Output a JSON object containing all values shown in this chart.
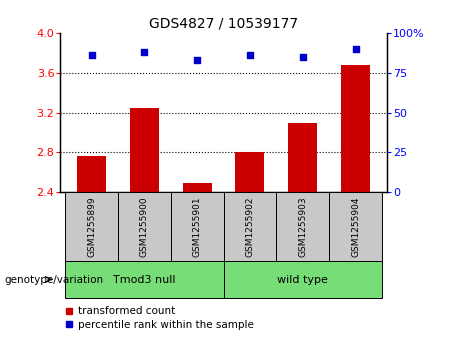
{
  "title": "GDS4827 / 10539177",
  "samples": [
    "GSM1255899",
    "GSM1255900",
    "GSM1255901",
    "GSM1255902",
    "GSM1255903",
    "GSM1255904"
  ],
  "bar_values": [
    2.76,
    3.25,
    2.49,
    2.8,
    3.1,
    3.68
  ],
  "percentile_values": [
    86,
    88,
    83,
    86,
    85,
    90
  ],
  "ylim_left": [
    2.4,
    4.0
  ],
  "ylim_right": [
    0,
    100
  ],
  "yticks_left": [
    2.4,
    2.8,
    3.2,
    3.6,
    4.0
  ],
  "yticks_right": [
    0,
    25,
    50,
    75,
    100
  ],
  "bar_color": "#cc0000",
  "dot_color": "#0000cc",
  "group1_label": "Tmod3 null",
  "group2_label": "wild type",
  "group_color": "#77dd77",
  "sample_box_color": "#c8c8c8",
  "genotype_label": "genotype/variation",
  "legend_bar_label": "transformed count",
  "legend_dot_label": "percentile rank within the sample",
  "bar_width": 0.55,
  "dotted_line_yticks": [
    2.8,
    3.2,
    3.6
  ]
}
